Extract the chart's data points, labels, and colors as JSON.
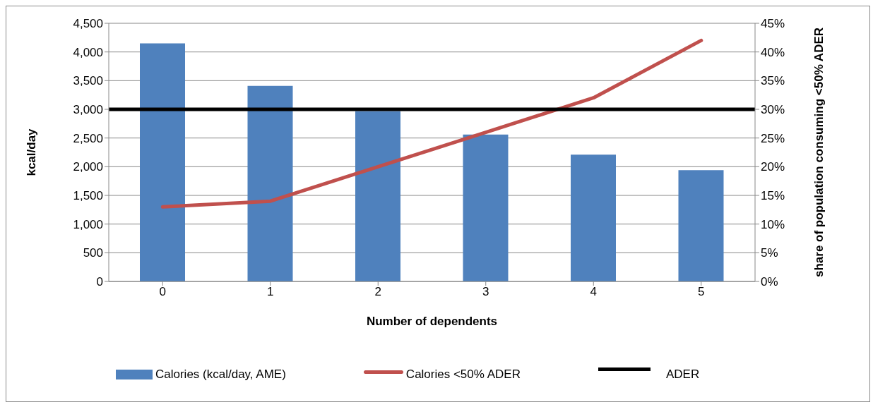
{
  "chart_data": {
    "type": "bar",
    "xlabel": "Number of dependents",
    "ylabel": "kcal/day",
    "y2label": "share of population consuming <50% ADER",
    "categories": [
      "0",
      "1",
      "2",
      "3",
      "4",
      "5"
    ],
    "series": [
      {
        "name": "Calories (kcal/day, AME)",
        "color": "#4f81bd",
        "values": [
          4150,
          3410,
          2970,
          2560,
          2210,
          1940
        ]
      },
      {
        "name": "Calories <50% ADER",
        "type": "line",
        "axis": "y2",
        "color": "#c0504d",
        "values": [
          13,
          14,
          20,
          26,
          32,
          42
        ]
      }
    ],
    "ylim": [
      0,
      4500
    ],
    "yticks": [
      0,
      500,
      {
        "value": 1000,
        "label": "1,000"
      },
      {
        "value": 1500,
        "label": "1,500"
      },
      {
        "value": 2000,
        "label": "2,000"
      },
      {
        "value": 2500,
        "label": "2,500"
      },
      {
        "value": 3000,
        "label": "3,000"
      },
      {
        "value": 3500,
        "label": "3,500"
      },
      {
        "value": 4000,
        "label": "4,000"
      },
      {
        "value": 4500,
        "label": "4,500"
      }
    ],
    "y2lim": [
      0,
      45
    ],
    "y2ticks": [
      {
        "value": 0,
        "label": "0%"
      },
      {
        "value": 5,
        "label": "5%"
      },
      {
        "value": 10,
        "label": "10%"
      },
      {
        "value": 15,
        "label": "15%"
      },
      {
        "value": 20,
        "label": "20%"
      },
      {
        "value": 25,
        "label": "25%"
      },
      {
        "value": 30,
        "label": "30%"
      },
      {
        "value": 35,
        "label": "35%"
      },
      {
        "value": 40,
        "label": "40%"
      },
      {
        "value": 45,
        "label": "45%"
      }
    ],
    "ref_lines": [
      {
        "axis": "y",
        "value": 3000,
        "label": "ADER",
        "color": "#000000"
      }
    ],
    "grid": "y",
    "legend": "bottom",
    "marker": "none"
  }
}
